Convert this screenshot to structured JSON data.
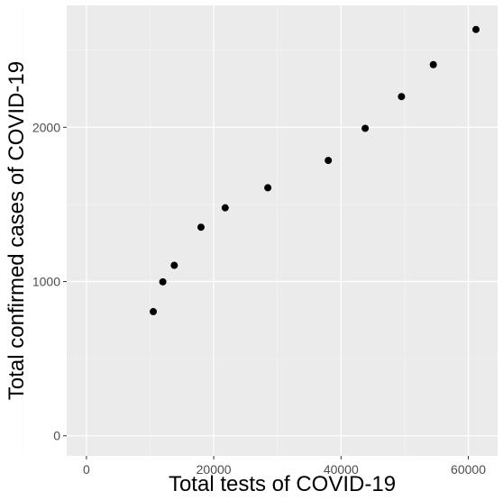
{
  "chart_data": {
    "type": "scatter",
    "title": "",
    "xlabel": "Total tests of COVID-19",
    "ylabel": "Total confirmed cases of COVID-19",
    "xlim": [
      -3100,
      64600
    ],
    "ylim": [
      -130,
      2790
    ],
    "xticks": [
      0,
      20000,
      40000,
      60000
    ],
    "xtick_labels": [
      "0",
      "20000",
      "40000",
      "60000"
    ],
    "yticks": [
      0,
      1000,
      2000
    ],
    "ytick_labels": [
      "0",
      "1000",
      "2000"
    ],
    "grid": true,
    "legend": "none",
    "points": [
      {
        "x": 10500,
        "y": 805
      },
      {
        "x": 12000,
        "y": 998
      },
      {
        "x": 13800,
        "y": 1105
      },
      {
        "x": 18000,
        "y": 1352
      },
      {
        "x": 21800,
        "y": 1478
      },
      {
        "x": 28500,
        "y": 1608
      },
      {
        "x": 38000,
        "y": 1785
      },
      {
        "x": 43800,
        "y": 1993
      },
      {
        "x": 49500,
        "y": 2199
      },
      {
        "x": 54500,
        "y": 2406
      },
      {
        "x": 61200,
        "y": 2634
      }
    ],
    "colors": {
      "panel_bg": "#ebebeb",
      "grid_major": "#ffffff",
      "grid_minor": "#f5f5f5",
      "point": "#000000",
      "tick_text": "#4d4d4d"
    }
  }
}
